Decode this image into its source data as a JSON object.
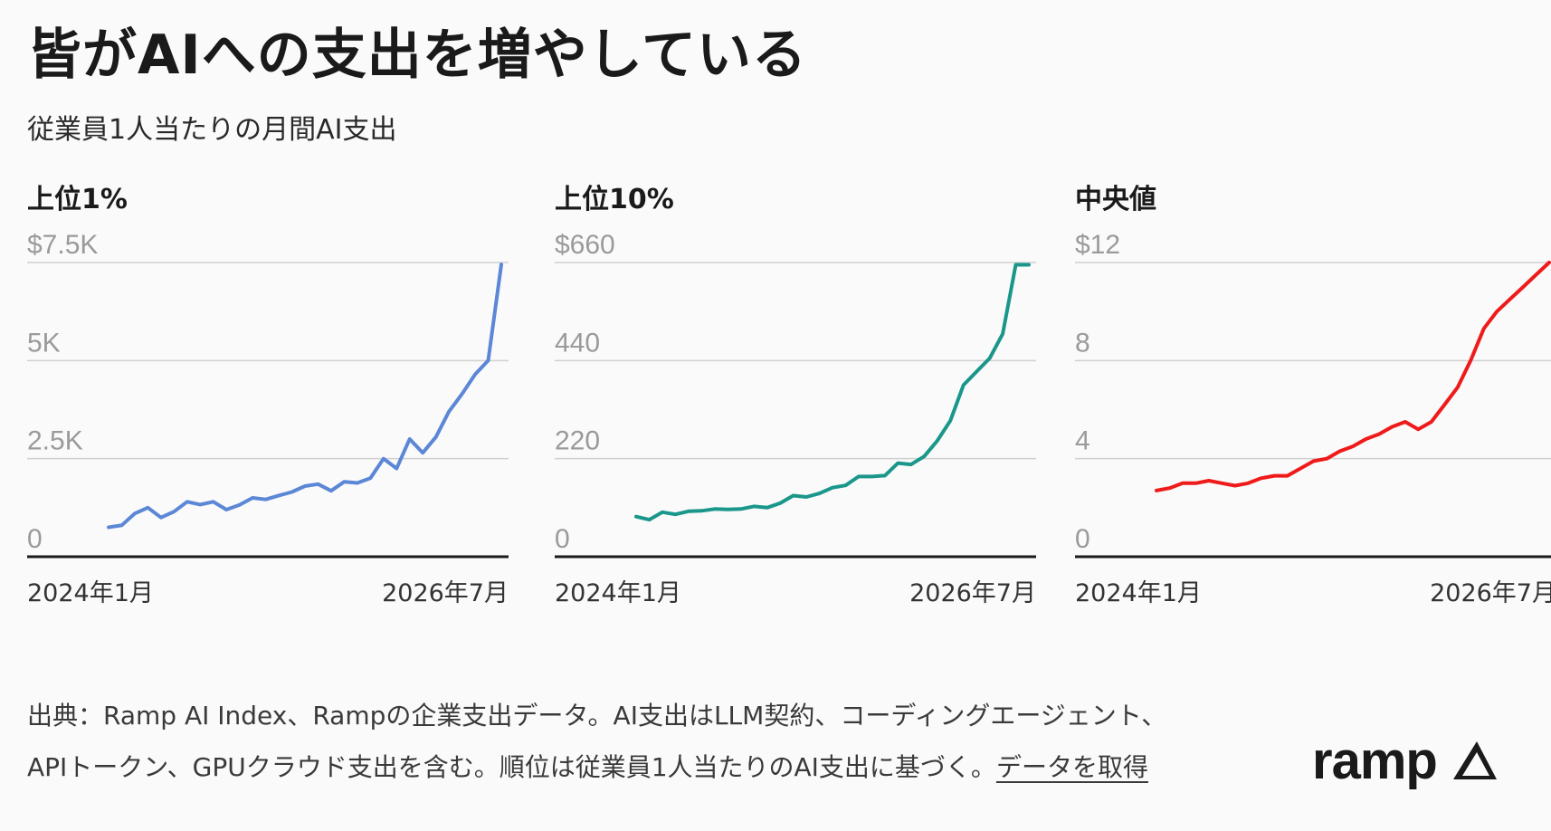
{
  "title": "皆がAIへの支出を増やしている",
  "subtitle": "従業員1人当たりの月間AI支出",
  "footer": {
    "line1": "出典：Ramp AI Index、Rampの企業支出データ。AI支出はLLM契約、コーディングエージェント、",
    "line2": "APIトークン、GPUクラウド支出を含む。順位は従業員1人当たりのAI支出に基づく。",
    "link": "データを取得"
  },
  "logo": "ramp",
  "chart_data": [
    {
      "type": "line",
      "title": "上位1%",
      "color": "#5b87d6",
      "yticks": [
        "0",
        "2.5K",
        "5K",
        "$7.5K"
      ],
      "ytick_values": [
        0,
        2500,
        5000,
        7500
      ],
      "ylim": [
        0,
        7500
      ],
      "xlabels": [
        "2024年1月",
        "2026年7月"
      ],
      "x": [
        "2024-01",
        "2024-02",
        "2024-03",
        "2024-04",
        "2024-05",
        "2024-06",
        "2024-07",
        "2024-08",
        "2024-09",
        "2024-10",
        "2024-11",
        "2024-12",
        "2025-01",
        "2025-02",
        "2025-03",
        "2025-04",
        "2025-05",
        "2025-06",
        "2025-07",
        "2025-08",
        "2025-09",
        "2025-10",
        "2025-11",
        "2025-12",
        "2026-01",
        "2026-02",
        "2026-03",
        "2026-04",
        "2026-05",
        "2026-06",
        "2026-07"
      ],
      "values": [
        750,
        800,
        1100,
        1250,
        1000,
        1150,
        1400,
        1330,
        1400,
        1200,
        1320,
        1500,
        1460,
        1560,
        1650,
        1800,
        1850,
        1680,
        1910,
        1880,
        2000,
        2500,
        2250,
        3000,
        2650,
        3050,
        3700,
        4150,
        4650,
        5000,
        7450
      ]
    },
    {
      "type": "line",
      "title": "上位10%",
      "color": "#1a978a",
      "yticks": [
        "0",
        "220",
        "440",
        "$660"
      ],
      "ytick_values": [
        0,
        220,
        440,
        660
      ],
      "ylim": [
        0,
        660
      ],
      "xlabels": [
        "2024年1月",
        "2026年7月"
      ],
      "x": [
        "2024-01",
        "2024-02",
        "2024-03",
        "2024-04",
        "2024-05",
        "2024-06",
        "2024-07",
        "2024-08",
        "2024-09",
        "2024-10",
        "2024-11",
        "2024-12",
        "2025-01",
        "2025-02",
        "2025-03",
        "2025-04",
        "2025-05",
        "2025-06",
        "2025-07",
        "2025-08",
        "2025-09",
        "2025-10",
        "2025-11",
        "2025-12",
        "2026-01",
        "2026-02",
        "2026-03",
        "2026-04",
        "2026-05",
        "2026-06",
        "2026-07"
      ],
      "values": [
        90,
        83,
        100,
        95,
        102,
        103,
        107,
        106,
        107,
        113,
        110,
        120,
        137,
        134,
        142,
        155,
        160,
        180,
        180,
        182,
        210,
        207,
        225,
        260,
        305,
        385,
        415,
        445,
        500,
        655,
        655
      ]
    },
    {
      "type": "line",
      "title": "中央値",
      "color": "#ef1a1a",
      "yticks": [
        "0",
        "4",
        "8",
        "$12"
      ],
      "ytick_values": [
        0,
        4,
        8,
        12
      ],
      "ylim": [
        0,
        12
      ],
      "xlabels": [
        "2024年1月",
        "2026年7月"
      ],
      "x": [
        "2024-01",
        "2024-02",
        "2024-03",
        "2024-04",
        "2024-05",
        "2024-06",
        "2024-07",
        "2024-08",
        "2024-09",
        "2024-10",
        "2024-11",
        "2024-12",
        "2025-01",
        "2025-02",
        "2025-03",
        "2025-04",
        "2025-05",
        "2025-06",
        "2025-07",
        "2025-08",
        "2025-09",
        "2025-10",
        "2025-11",
        "2025-12",
        "2026-01",
        "2026-02",
        "2026-03",
        "2026-04",
        "2026-05",
        "2026-06",
        "2026-07"
      ],
      "values": [
        2.7,
        2.8,
        3.0,
        3.0,
        3.1,
        3.0,
        2.9,
        3.0,
        3.2,
        3.3,
        3.3,
        3.6,
        3.9,
        4.0,
        4.3,
        4.5,
        4.8,
        5.0,
        5.3,
        5.5,
        5.2,
        5.5,
        6.2,
        6.9,
        8.0,
        9.3,
        10.0,
        10.5,
        11.0,
        11.5,
        12.0
      ]
    }
  ]
}
